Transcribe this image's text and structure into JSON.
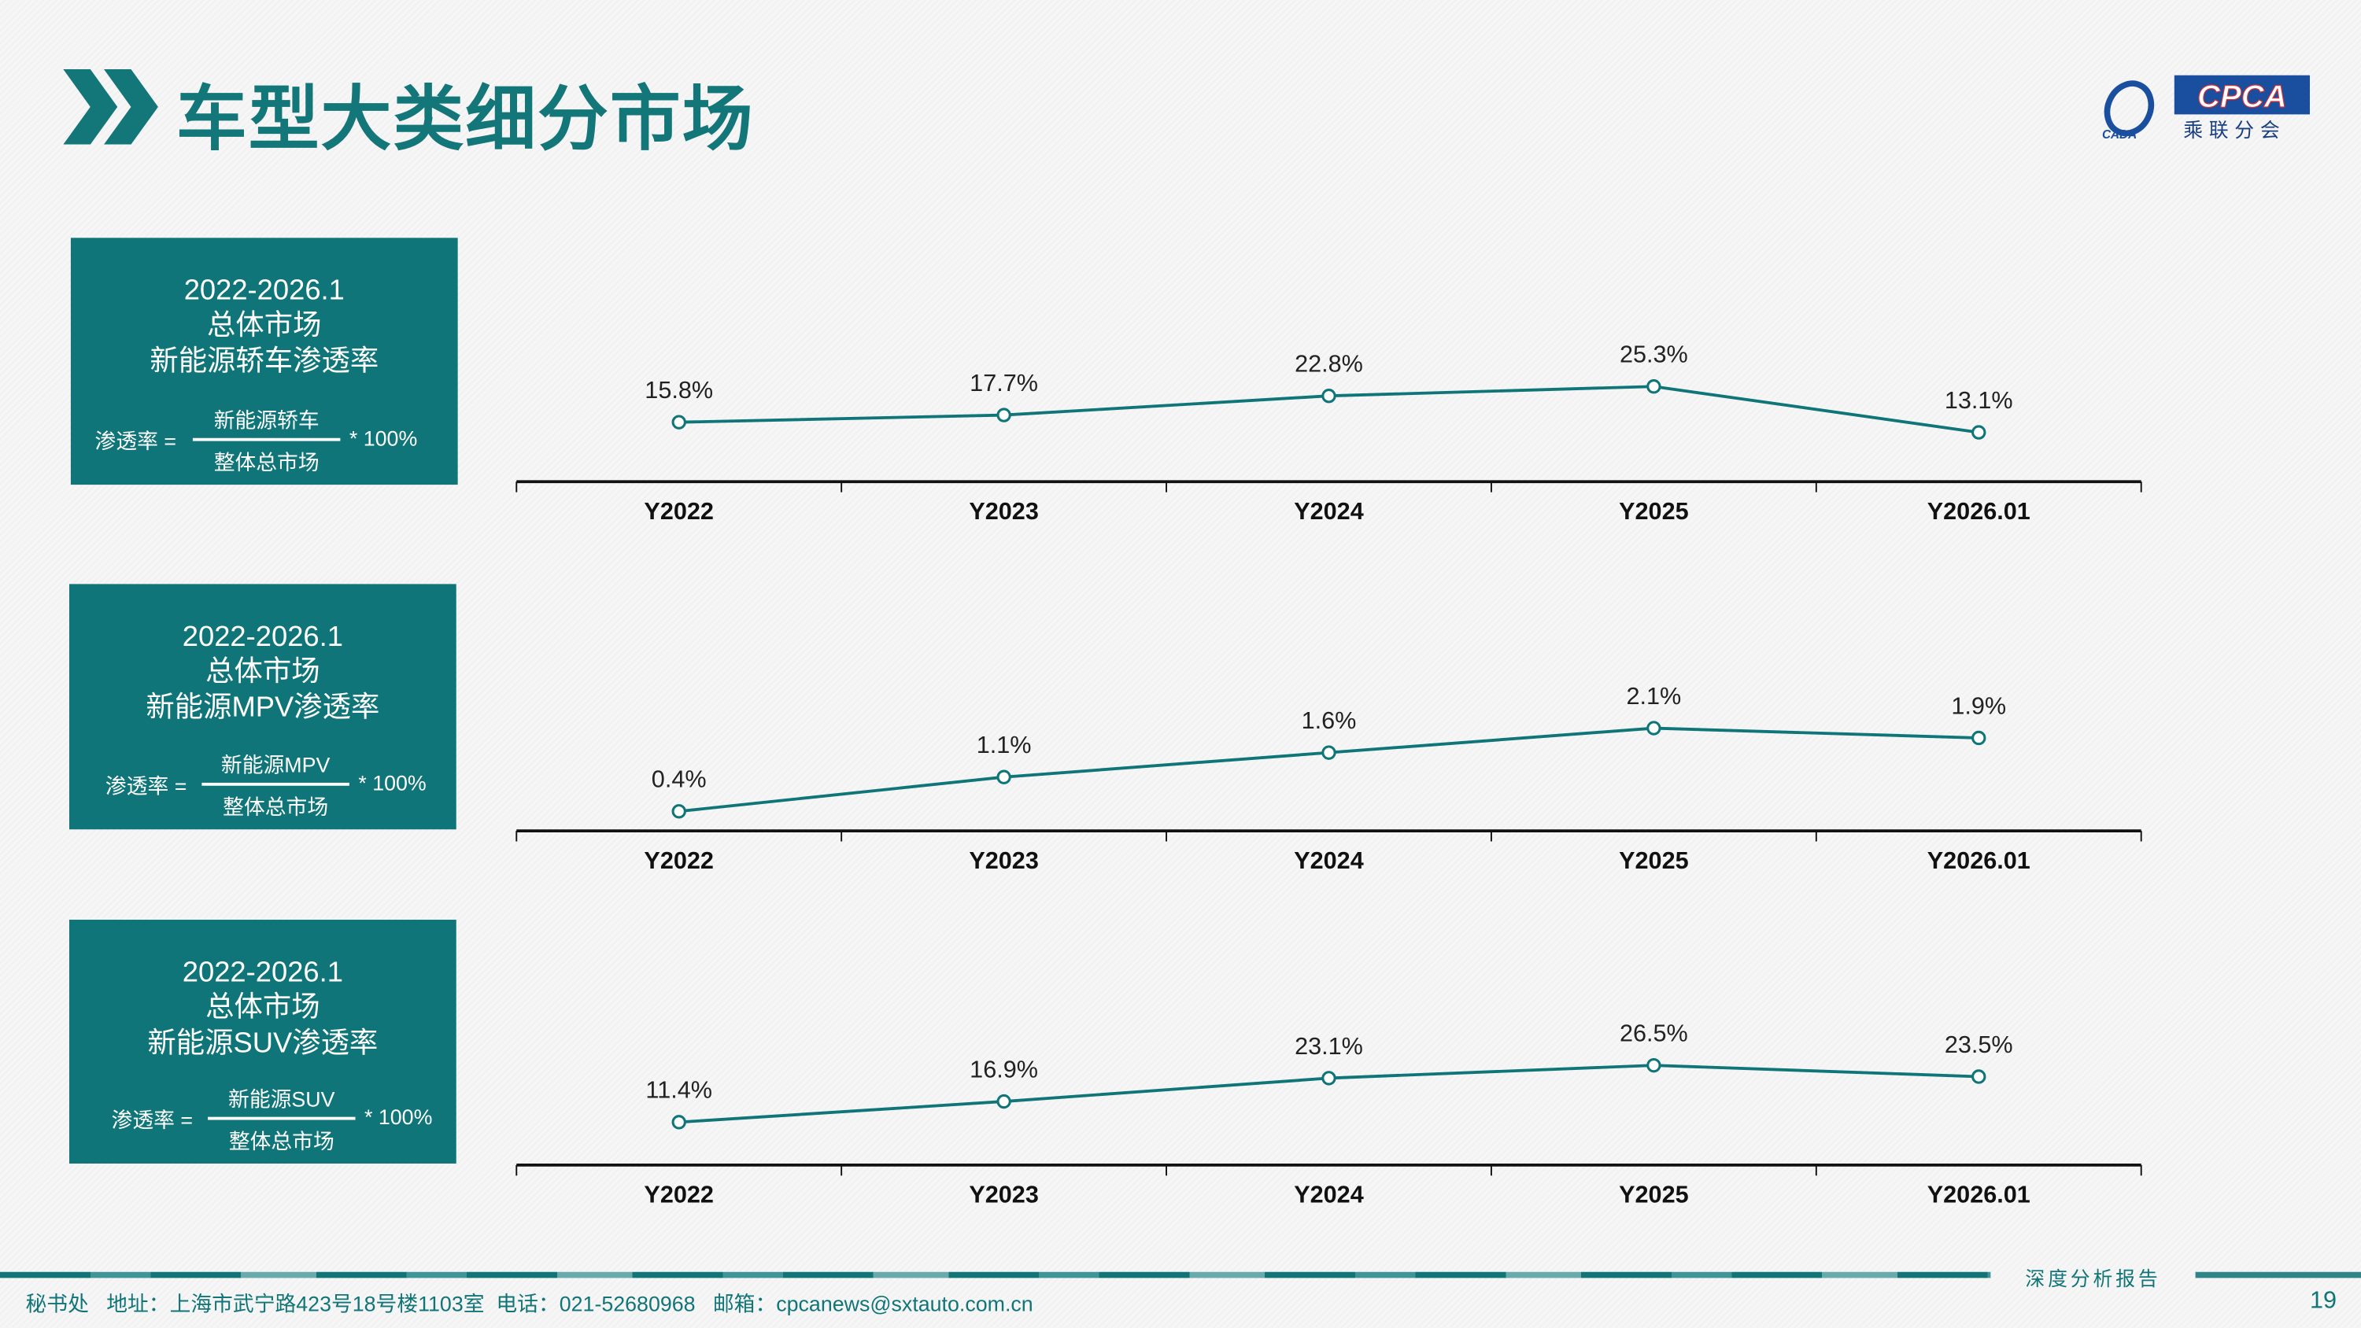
{
  "header": {
    "title": "车型大类细分市场",
    "chevron_icon": "double-chevron-right-icon",
    "accent": "#0f7578"
  },
  "logo": {
    "text": "CPCA",
    "subtitle": "乘联分会",
    "mark": "CADA"
  },
  "panels": [
    {
      "line1": "2022-2026.1",
      "line2": "总体市场",
      "line3": "新能源轿车渗透率",
      "formula_label": "渗透率 =",
      "numerator": "新能源轿车",
      "denominator": "整体总市场",
      "multiplier": "* 100%"
    },
    {
      "line1": "2022-2026.1",
      "line2": "总体市场",
      "line3": "新能源MPV渗透率",
      "formula_label": "渗透率 =",
      "numerator": "新能源MPV",
      "denominator": "整体总市场",
      "multiplier": "* 100%"
    },
    {
      "line1": "2022-2026.1",
      "line2": "总体市场",
      "line3": "新能源SUV渗透率",
      "formula_label": "渗透率 =",
      "numerator": "新能源SUV",
      "denominator": "整体总市场",
      "multiplier": "* 100%"
    }
  ],
  "chart_data": [
    {
      "type": "line",
      "categories": [
        "Y2022",
        "Y2023",
        "Y2024",
        "Y2025",
        "Y2026.01"
      ],
      "values": [
        15.8,
        17.7,
        22.8,
        25.3,
        13.1
      ],
      "labels": [
        "15.8%",
        "17.7%",
        "22.8%",
        "25.3%",
        "13.1%"
      ],
      "ylim": [
        0,
        52
      ],
      "color": "#0f7578",
      "grid": false
    },
    {
      "type": "line",
      "categories": [
        "Y2022",
        "Y2023",
        "Y2024",
        "Y2025",
        "Y2026.01"
      ],
      "values": [
        0.4,
        1.1,
        1.6,
        2.1,
        1.9
      ],
      "labels": [
        "0.4%",
        "1.1%",
        "1.6%",
        "2.1%",
        "1.9%"
      ],
      "ylim": [
        0,
        4
      ],
      "color": "#0f7578",
      "grid": false
    },
    {
      "type": "line",
      "categories": [
        "Y2022",
        "Y2023",
        "Y2024",
        "Y2025",
        "Y2026.01"
      ],
      "values": [
        11.4,
        16.9,
        23.1,
        26.5,
        23.5
      ],
      "labels": [
        "11.4%",
        "16.9%",
        "23.1%",
        "26.5%",
        "23.5%"
      ],
      "ylim": [
        0,
        52
      ],
      "color": "#0f7578",
      "grid": false
    }
  ],
  "footer": {
    "report": "深度分析报告",
    "address": "秘书处   地址：上海市武宁路423号18号楼1103室  电话：021-52680968   邮箱：cpcanews@sxtauto.com.cn",
    "page": "19"
  }
}
